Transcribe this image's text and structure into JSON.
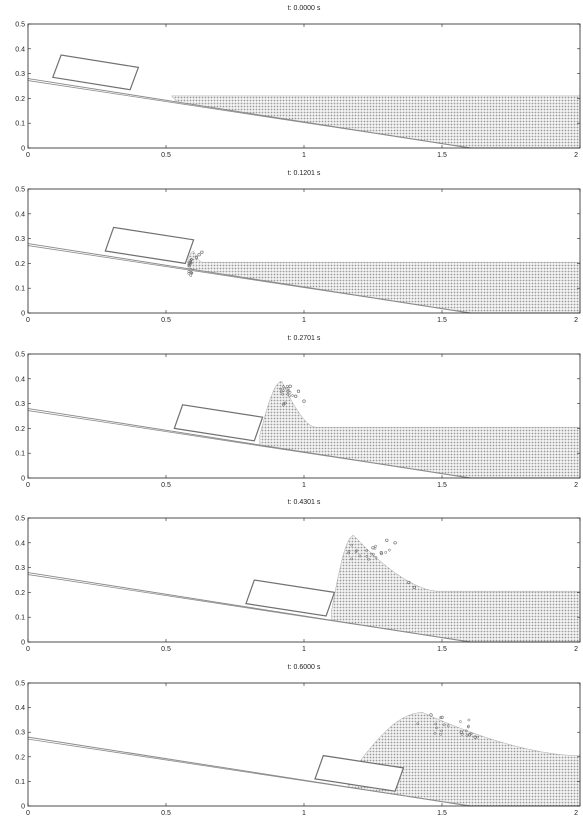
{
  "colors": {
    "axis": "#222222",
    "slope": "#8c8c8c",
    "block": "#707070",
    "water": "#aaaaaa",
    "particle": "#666666"
  },
  "chart_data": [
    {
      "type": "scatter",
      "title": "t: 0.0000 s",
      "xlim": [
        0,
        2
      ],
      "ylim": [
        0,
        0.5
      ],
      "x_ticks": [
        "0",
        "0.5",
        "1",
        "1.5",
        "2"
      ],
      "y_ticks": [
        "0",
        "0.1",
        "0.2",
        "0.3",
        "0.4",
        "0.5"
      ],
      "slope": [
        [
          0,
          0.28
        ],
        [
          1.6,
          0
        ]
      ],
      "water_level": 0.21,
      "block": [
        [
          0.09,
          0.285
        ],
        [
          0.37,
          0.235
        ],
        [
          0.4,
          0.325
        ],
        [
          0.12,
          0.375
        ]
      ],
      "wave": null
    },
    {
      "type": "scatter",
      "title": "t: 0.1201 s",
      "xlim": [
        0,
        2
      ],
      "ylim": [
        0,
        0.5
      ],
      "x_ticks": [
        "0",
        "0.5",
        "1",
        "1.5",
        "2"
      ],
      "y_ticks": [
        "0",
        "0.1",
        "0.2",
        "0.3",
        "0.4",
        "0.5"
      ],
      "slope": [
        [
          0,
          0.28
        ],
        [
          1.6,
          0
        ]
      ],
      "water_level": 0.205,
      "block": [
        [
          0.28,
          0.25
        ],
        [
          0.57,
          0.2
        ],
        [
          0.6,
          0.295
        ],
        [
          0.31,
          0.345
        ]
      ],
      "wave": {
        "x_start": 0.58,
        "x_crest": 0.6,
        "height": 0.25,
        "width": 0.03,
        "spray": [
          [
            0.62,
            0.235
          ],
          [
            0.63,
            0.245
          ],
          [
            0.61,
            0.225
          ]
        ]
      }
    },
    {
      "type": "scatter",
      "title": "t: 0.2701 s",
      "xlim": [
        0,
        2
      ],
      "ylim": [
        0,
        0.5
      ],
      "x_ticks": [
        "0",
        "0.5",
        "1",
        "1.5",
        "2"
      ],
      "y_ticks": [
        "0",
        "0.1",
        "0.2",
        "0.3",
        "0.4",
        "0.5"
      ],
      "slope": [
        [
          0,
          0.28
        ],
        [
          1.6,
          0
        ]
      ],
      "water_level": 0.205,
      "block": [
        [
          0.53,
          0.2
        ],
        [
          0.82,
          0.15
        ],
        [
          0.85,
          0.245
        ],
        [
          0.56,
          0.295
        ]
      ],
      "wave": {
        "x_start": 0.84,
        "x_crest": 0.92,
        "height": 0.39,
        "width": 0.12,
        "spray": [
          [
            0.97,
            0.33
          ],
          [
            1.0,
            0.31
          ],
          [
            0.95,
            0.37
          ],
          [
            0.98,
            0.35
          ]
        ]
      }
    },
    {
      "type": "scatter",
      "title": "t: 0.4301 s",
      "xlim": [
        0,
        2
      ],
      "ylim": [
        0,
        0.5
      ],
      "x_ticks": [
        "0",
        "0.5",
        "1",
        "1.5",
        "2"
      ],
      "y_ticks": [
        "0",
        "0.1",
        "0.2",
        "0.3",
        "0.4",
        "0.5"
      ],
      "slope": [
        [
          0,
          0.28
        ],
        [
          1.6,
          0
        ]
      ],
      "water_level": 0.205,
      "block": [
        [
          0.79,
          0.155
        ],
        [
          1.08,
          0.105
        ],
        [
          1.11,
          0.2
        ],
        [
          0.82,
          0.25
        ]
      ],
      "wave": {
        "x_start": 1.1,
        "x_crest": 1.18,
        "height": 0.43,
        "width": 0.3,
        "spray": [
          [
            1.25,
            0.38
          ],
          [
            1.28,
            0.36
          ],
          [
            1.38,
            0.24
          ],
          [
            1.4,
            0.22
          ],
          [
            1.33,
            0.4
          ],
          [
            1.3,
            0.41
          ]
        ]
      }
    },
    {
      "type": "scatter",
      "title": "t: 0.6000 s",
      "xlim": [
        0,
        2
      ],
      "ylim": [
        0,
        0.5
      ],
      "x_ticks": [
        "0",
        "0.5",
        "1",
        "1.5",
        "2"
      ],
      "y_ticks": [
        "0",
        "0.1",
        "0.2",
        "0.3",
        "0.4",
        "0.5"
      ],
      "slope": [
        [
          0,
          0.28
        ],
        [
          1.6,
          0
        ]
      ],
      "water_level": 0.205,
      "block": [
        [
          1.04,
          0.11
        ],
        [
          1.33,
          0.06
        ],
        [
          1.36,
          0.155
        ],
        [
          1.07,
          0.205
        ]
      ],
      "wave": {
        "x_start": 1.16,
        "x_crest": 1.43,
        "height": 0.38,
        "width": 0.55,
        "spray": [
          [
            1.57,
            0.3
          ],
          [
            1.6,
            0.29
          ],
          [
            1.62,
            0.28
          ],
          [
            1.5,
            0.36
          ],
          [
            1.46,
            0.37
          ]
        ]
      }
    }
  ]
}
